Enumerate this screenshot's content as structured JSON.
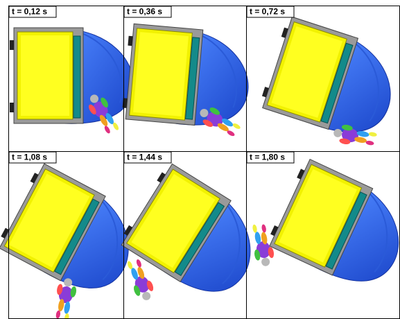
{
  "panels": [
    {
      "label": "t = 0,12 s"
    },
    {
      "label": "t = 0,36 s"
    },
    {
      "label": "t = 0,72 s"
    },
    {
      "label": "t = 1,08 s"
    },
    {
      "label": "t = 1,44 s"
    },
    {
      "label": "t = 1,80 s"
    }
  ]
}
